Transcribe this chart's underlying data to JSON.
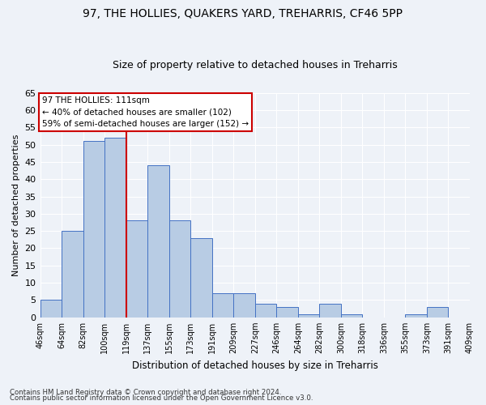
{
  "title1": "97, THE HOLLIES, QUAKERS YARD, TREHARRIS, CF46 5PP",
  "title2": "Size of property relative to detached houses in Treharris",
  "xlabel": "Distribution of detached houses by size in Treharris",
  "ylabel": "Number of detached properties",
  "bins": [
    "46sqm",
    "64sqm",
    "82sqm",
    "100sqm",
    "119sqm",
    "137sqm",
    "155sqm",
    "173sqm",
    "191sqm",
    "209sqm",
    "227sqm",
    "246sqm",
    "264sqm",
    "282sqm",
    "300sqm",
    "318sqm",
    "336sqm",
    "355sqm",
    "373sqm",
    "391sqm",
    "409sqm"
  ],
  "values": [
    5,
    25,
    51,
    52,
    28,
    44,
    28,
    23,
    7,
    7,
    4,
    3,
    1,
    4,
    1,
    0,
    0,
    1,
    3,
    0
  ],
  "bar_color": "#b8cce4",
  "bar_edge_color": "#4472c4",
  "highlight_line_bin": 4,
  "annotation_text": "97 THE HOLLIES: 111sqm\n← 40% of detached houses are smaller (102)\n59% of semi-detached houses are larger (152) →",
  "annotation_box_color": "white",
  "annotation_box_edge_color": "#cc0000",
  "highlight_color": "#cc0000",
  "ylim": [
    0,
    65
  ],
  "yticks": [
    0,
    5,
    10,
    15,
    20,
    25,
    30,
    35,
    40,
    45,
    50,
    55,
    60,
    65
  ],
  "footer1": "Contains HM Land Registry data © Crown copyright and database right 2024.",
  "footer2": "Contains public sector information licensed under the Open Government Licence v3.0.",
  "bg_color": "#eef2f8",
  "grid_color": "#ffffff",
  "title1_fontsize": 10,
  "title2_fontsize": 9
}
